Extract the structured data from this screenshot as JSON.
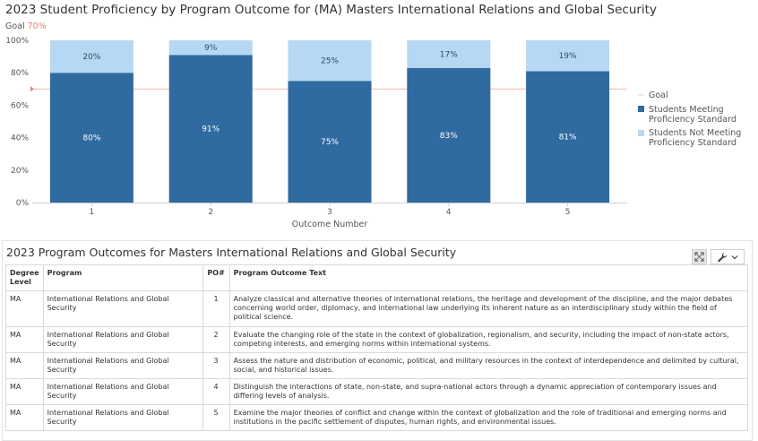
{
  "chart_title": "2023 Student Proficiency by Program Outcome for (MA) Masters International Relations and Global Security",
  "goal": {
    "label": "Goal",
    "value_text": "70%",
    "value": 70,
    "color": "#e8826a"
  },
  "chart_data": {
    "type": "bar",
    "stacked": true,
    "categories": [
      "1",
      "2",
      "3",
      "4",
      "5"
    ],
    "series": [
      {
        "name": "Students Meeting Proficiency Standard",
        "values": [
          80,
          91,
          75,
          83,
          81
        ],
        "color": "#2f6aa0",
        "label_color": "#ffffff"
      },
      {
        "name": "Students Not Meeting Proficiency Standard",
        "values": [
          20,
          9,
          25,
          17,
          19
        ],
        "color": "#b7d8f2",
        "label_color": "#2b4a6b"
      }
    ],
    "goal_line": 70,
    "xlabel": "Outcome Number",
    "ylabel": "",
    "ylim": [
      0,
      100
    ],
    "yticks": [
      "0%",
      "20%",
      "40%",
      "60%",
      "80%",
      "100%"
    ],
    "legend": [
      "Goal",
      "Students Meeting Proficiency Standard",
      "Students Not Meeting Proficiency Standard"
    ],
    "legend_position": "right",
    "grid": false
  },
  "legend_lines": {
    "goal": [
      "Goal"
    ],
    "meeting": [
      "Students Meeting",
      "Proficiency Standard"
    ],
    "not_meeting": [
      "Students Not Meeting",
      "Proficiency Standard"
    ]
  },
  "table": {
    "title": "2023 Program Outcomes for Masters International Relations and Global Security",
    "headers": {
      "degree": "Degree Level",
      "program": "Program",
      "po": "PO#",
      "text": "Program Outcome Text"
    },
    "rows": [
      {
        "degree": "MA",
        "program": "International Relations and Global Security",
        "po": "1",
        "text": "Analyze classical and alternative theories of international relations, the heritage and development of the discipline, and the major debates concerning world order, diplomacy, and international law underlying its inherent nature as an interdisciplinary study within the field of political science."
      },
      {
        "degree": "MA",
        "program": "International Relations and Global Security",
        "po": "2",
        "text": "Evaluate the changing role of the state in the context of globalization, regionalism, and security, including the impact of non-state actors, competing interests, and emerging norms within international systems."
      },
      {
        "degree": "MA",
        "program": "International Relations and Global Security",
        "po": "3",
        "text": "Assess the nature and distribution of economic, political, and military resources in the context of interdependence and delimited by cultural, social, and historical issues."
      },
      {
        "degree": "MA",
        "program": "International Relations and Global Security",
        "po": "4",
        "text": "Distinguish the interactions of state, non-state, and supra-national actors through a dynamic appreciation of contemporary issues and differing levels of analysis."
      },
      {
        "degree": "MA",
        "program": "International Relations and Global Security",
        "po": "5",
        "text": "Examine the major theories of conflict and change within the context of globalization and the role of traditional and emerging norms and institutions in the pacific settlement of disputes, human rights, and environmental issues."
      }
    ]
  },
  "icons": {
    "expand": "expand-icon",
    "tools": "wrench-icon",
    "dropdown": "chevron-down-icon"
  }
}
